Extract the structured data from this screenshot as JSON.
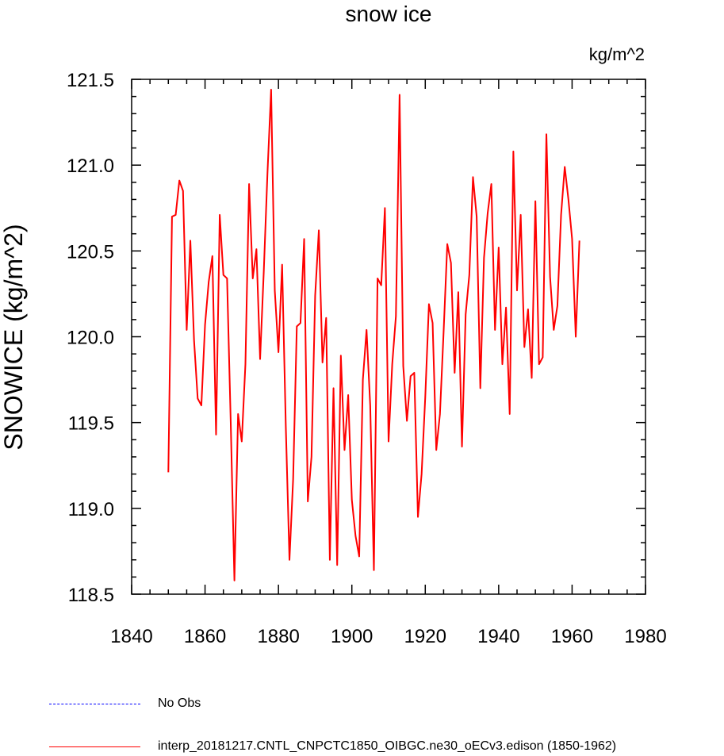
{
  "chart_data": {
    "type": "line",
    "title": "snow ice",
    "units_label": "kg/m^2",
    "ylabel": "SNOWICE  (kg/m^2)",
    "xlabel": "",
    "xlim": [
      1840,
      1980
    ],
    "ylim": [
      118.5,
      121.5
    ],
    "x_ticks": [
      1840,
      1860,
      1880,
      1900,
      1920,
      1940,
      1960,
      1980
    ],
    "x_tick_labels": [
      "1840",
      "1860",
      "1880",
      "1900",
      "1920",
      "1940",
      "1960",
      "1980"
    ],
    "y_ticks": [
      118.5,
      119.0,
      119.5,
      120.0,
      120.5,
      121.0,
      121.5
    ],
    "y_tick_labels": [
      "118.5",
      "119.0",
      "119.5",
      "120.0",
      "120.5",
      "121.0",
      "121.5"
    ],
    "series": [
      {
        "name": "interp_20181217.CNTL_CNPCTC1850_OIBGC.ne30_oECv3.edison (1850-1962)",
        "color": "#ff0000",
        "dash": "solid",
        "x": [
          1850,
          1851,
          1852,
          1853,
          1854,
          1855,
          1856,
          1857,
          1858,
          1859,
          1860,
          1861,
          1862,
          1863,
          1864,
          1865,
          1866,
          1867,
          1868,
          1869,
          1870,
          1871,
          1872,
          1873,
          1874,
          1875,
          1876,
          1877,
          1878,
          1879,
          1880,
          1881,
          1882,
          1883,
          1884,
          1885,
          1886,
          1887,
          1888,
          1889,
          1890,
          1891,
          1892,
          1893,
          1894,
          1895,
          1896,
          1897,
          1898,
          1899,
          1900,
          1901,
          1902,
          1903,
          1904,
          1905,
          1906,
          1907,
          1908,
          1909,
          1910,
          1911,
          1912,
          1913,
          1914,
          1915,
          1916,
          1917,
          1918,
          1919,
          1920,
          1921,
          1922,
          1923,
          1924,
          1925,
          1926,
          1927,
          1928,
          1929,
          1930,
          1931,
          1932,
          1933,
          1934,
          1935,
          1936,
          1937,
          1938,
          1939,
          1940,
          1941,
          1942,
          1943,
          1944,
          1945,
          1946,
          1947,
          1948,
          1949,
          1950,
          1951,
          1952,
          1953,
          1954,
          1955,
          1956,
          1957,
          1958,
          1959,
          1960,
          1961,
          1962
        ],
        "values": [
          119.21,
          120.7,
          120.71,
          120.91,
          120.85,
          120.04,
          120.56,
          119.98,
          119.64,
          119.6,
          120.07,
          120.32,
          120.47,
          119.43,
          120.71,
          120.36,
          120.34,
          119.5,
          118.58,
          119.55,
          119.39,
          119.84,
          120.89,
          120.34,
          120.51,
          119.87,
          120.38,
          120.95,
          121.44,
          120.27,
          119.91,
          120.42,
          119.48,
          118.7,
          119.17,
          120.06,
          120.08,
          120.57,
          119.04,
          119.3,
          120.24,
          120.62,
          119.85,
          120.11,
          118.7,
          119.7,
          118.67,
          119.89,
          119.34,
          119.66,
          119.05,
          118.84,
          118.72,
          119.75,
          120.04,
          119.6,
          118.64,
          120.34,
          120.3,
          120.75,
          119.39,
          119.84,
          120.12,
          121.41,
          119.83,
          119.51,
          119.77,
          119.79,
          118.95,
          119.2,
          119.65,
          120.19,
          120.08,
          119.34,
          119.55,
          120.03,
          120.54,
          120.43,
          119.79,
          120.26,
          119.36,
          120.13,
          120.36,
          120.93,
          120.7,
          119.7,
          120.46,
          120.72,
          120.89,
          120.04,
          120.52,
          119.84,
          120.17,
          119.55,
          121.08,
          120.27,
          120.71,
          119.94,
          120.16,
          119.76,
          120.79,
          119.84,
          119.88,
          121.18,
          120.35,
          120.04,
          120.18,
          120.71,
          120.99,
          120.8,
          120.57,
          120.0,
          120.56
        ]
      }
    ],
    "legend": [
      {
        "label": "No Obs",
        "color": "#0000ff",
        "dash": "dashed"
      },
      {
        "label": "interp_20181217.CNTL_CNPCTC1850_OIBGC.ne30_oECv3.edison (1850-1962)",
        "color": "#ff0000",
        "dash": "solid"
      }
    ],
    "legend_placement": "bottom-left",
    "grid": false
  }
}
